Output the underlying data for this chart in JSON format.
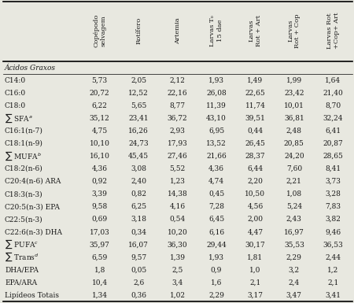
{
  "col_headers": [
    "Copépodo\nselvagem",
    "Rotífero",
    "Artemia",
    "Larvas Tₒ\n15 dae",
    "Larvas\nRot + Art",
    "Larvas\nRot + Cop",
    "Larvas Rot\n+Cop+ Art"
  ],
  "row_labels_display": [
    "Ácidos Graxos",
    "C14:0",
    "C16:0",
    "C18:0",
    "∑ SFA$^a$",
    "C16:1(n-7)",
    "C18:1(n-9)",
    "∑ MUFA$^b$",
    "C18:2(n-6)",
    "C20:4(n-6) ARA",
    "C18:3(n-3)",
    "C20:5(n-3) EPA",
    "C22:5(n-3)",
    "C22:6(n-3) DHA",
    "∑ PUFA$^c$",
    "∑ Trans$^d$",
    "DHA/EPA",
    "EPA/ARA",
    "Lipídeos Totais"
  ],
  "data_strings": [
    [
      "",
      "",
      "",
      "",
      "",
      "",
      ""
    ],
    [
      "5,73",
      "2,05",
      "2,12",
      "1,93",
      "1,49",
      "1,99",
      "1,64"
    ],
    [
      "20,72",
      "12,52",
      "22,16",
      "26,08",
      "22,65",
      "23,42",
      "21,40"
    ],
    [
      "6,22",
      "5,65",
      "8,77",
      "11,39",
      "11,74",
      "10,01",
      "8,70"
    ],
    [
      "35,12",
      "23,41",
      "36,72",
      "43,10",
      "39,51",
      "36,81",
      "32,24"
    ],
    [
      "4,75",
      "16,26",
      "2,93",
      "6,95",
      "0,44",
      "2,48",
      "6,41"
    ],
    [
      "10,10",
      "24,73",
      "17,93",
      "13,52",
      "26,45",
      "20,85",
      "20,87"
    ],
    [
      "16,10",
      "45,45",
      "27,46",
      "21,66",
      "28,37",
      "24,20",
      "28,65"
    ],
    [
      "4,36",
      "3,08",
      "5,52",
      "4,36",
      "6,44",
      "7,60",
      "8,41"
    ],
    [
      "0,92",
      "2,40",
      "1,23",
      "4,74",
      "2,20",
      "2,21",
      "3,73"
    ],
    [
      "3,39",
      "0,82",
      "14,38",
      "0,45",
      "10,50",
      "1,08",
      "3,28"
    ],
    [
      "9,58",
      "6,25",
      "4,16",
      "7,28",
      "4,56",
      "5,24",
      "7,83"
    ],
    [
      "0,69",
      "3,18",
      "0,54",
      "6,45",
      "2,00",
      "2,43",
      "3,82"
    ],
    [
      "17,03",
      "0,34",
      "10,20",
      "6,16",
      "4,47",
      "16,97",
      "9,46"
    ],
    [
      "35,97",
      "16,07",
      "36,30",
      "29,44",
      "30,17",
      "35,53",
      "36,53"
    ],
    [
      "6,59",
      "9,57",
      "1,39",
      "1,93",
      "1,81",
      "2,29",
      "2,44"
    ],
    [
      "1,8",
      "0,05",
      "2,5",
      "0,9",
      "1,0",
      "3,2",
      "1,2"
    ],
    [
      "10,4",
      "2,6",
      "3,4",
      "1,6",
      "2,1",
      "2,4",
      "2,1"
    ],
    [
      "1,34",
      "0,36",
      "1,02",
      "2,29",
      "3,17",
      "3,47",
      "3,41"
    ]
  ],
  "header_italic_row": 0,
  "background_color": "#e8e8e0",
  "text_color": "#1a1a1a"
}
